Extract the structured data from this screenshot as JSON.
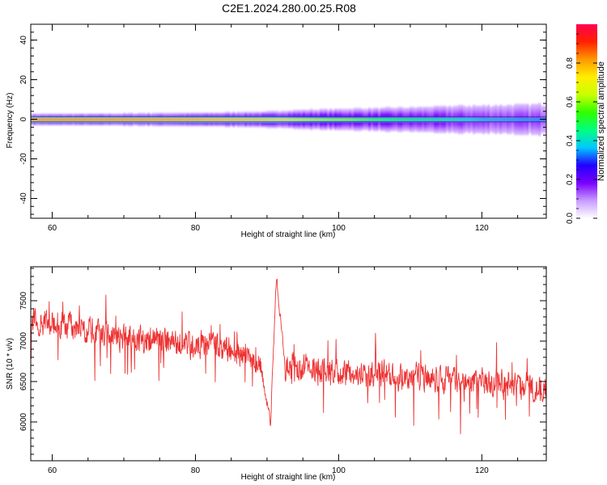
{
  "title": "C2E1.2024.280.00.25.R08",
  "chart_data": [
    {
      "type": "heatmap",
      "xlabel": "Height of straight line (km)",
      "ylabel": "Frequency (Hz)",
      "xlim": [
        57,
        129
      ],
      "ylim": [
        -50,
        48
      ],
      "x_ticks": [
        60,
        80,
        100,
        120
      ],
      "y_ticks": [
        -40,
        -20,
        0,
        20,
        40
      ],
      "grid": false,
      "colorbar": {
        "label": "Normalized spectral amplitude",
        "range": [
          0,
          1
        ],
        "ticks": [
          0.0,
          0.2,
          0.4,
          0.6,
          0.8
        ],
        "colors": [
          "#ffffff",
          "#c89bff",
          "#7a00ff",
          "#2200ff",
          "#00c8ff",
          "#00ff80",
          "#30ff00",
          "#c8ff00",
          "#ffee00",
          "#ff9900",
          "#ff2200",
          "#ff0050"
        ]
      },
      "ridge": {
        "description": "Narrow band centered at 0 Hz across all heights",
        "center_hz": 0,
        "profile": [
          {
            "x": 57,
            "amp": 0.95,
            "width_hz": 1.5
          },
          {
            "x": 70,
            "amp": 0.93,
            "width_hz": 1.6
          },
          {
            "x": 80,
            "amp": 0.9,
            "width_hz": 1.8
          },
          {
            "x": 90,
            "amp": 0.82,
            "width_hz": 2.2
          },
          {
            "x": 95,
            "amp": 0.72,
            "width_hz": 2.8
          },
          {
            "x": 100,
            "amp": 0.65,
            "width_hz": 3.2
          },
          {
            "x": 105,
            "amp": 0.58,
            "width_hz": 3.6
          },
          {
            "x": 110,
            "amp": 0.52,
            "width_hz": 4.0
          },
          {
            "x": 115,
            "amp": 0.48,
            "width_hz": 4.6
          },
          {
            "x": 120,
            "amp": 0.42,
            "width_hz": 5.2
          },
          {
            "x": 125,
            "amp": 0.4,
            "width_hz": 5.6
          },
          {
            "x": 129,
            "amp": 0.38,
            "width_hz": 6.0
          }
        ]
      }
    },
    {
      "type": "line",
      "xlabel": "Height of straight line (km)",
      "ylabel": "SNR (10 * v/v)",
      "xlim": [
        57,
        129
      ],
      "ylim": [
        5520,
        7920
      ],
      "x_ticks": [
        60,
        80,
        100,
        120
      ],
      "y_ticks": [
        6000,
        6500,
        7000,
        7500
      ],
      "grid": false,
      "series": [
        {
          "color": "#ee3333",
          "noise_amplitude": 180,
          "trend": [
            {
              "x": 57,
              "y": 7250
            },
            {
              "x": 62,
              "y": 7200
            },
            {
              "x": 67,
              "y": 7080
            },
            {
              "x": 72,
              "y": 7000
            },
            {
              "x": 77,
              "y": 6980
            },
            {
              "x": 82,
              "y": 6950
            },
            {
              "x": 86,
              "y": 6850
            },
            {
              "x": 89,
              "y": 6700
            },
            {
              "x": 90.5,
              "y": 6000
            },
            {
              "x": 91.3,
              "y": 7800
            },
            {
              "x": 92.5,
              "y": 6700
            },
            {
              "x": 96,
              "y": 6650
            },
            {
              "x": 100,
              "y": 6600
            },
            {
              "x": 105,
              "y": 6580
            },
            {
              "x": 110,
              "y": 6560
            },
            {
              "x": 115,
              "y": 6520
            },
            {
              "x": 120,
              "y": 6480
            },
            {
              "x": 125,
              "y": 6450
            },
            {
              "x": 129,
              "y": 6420
            }
          ]
        }
      ]
    }
  ]
}
